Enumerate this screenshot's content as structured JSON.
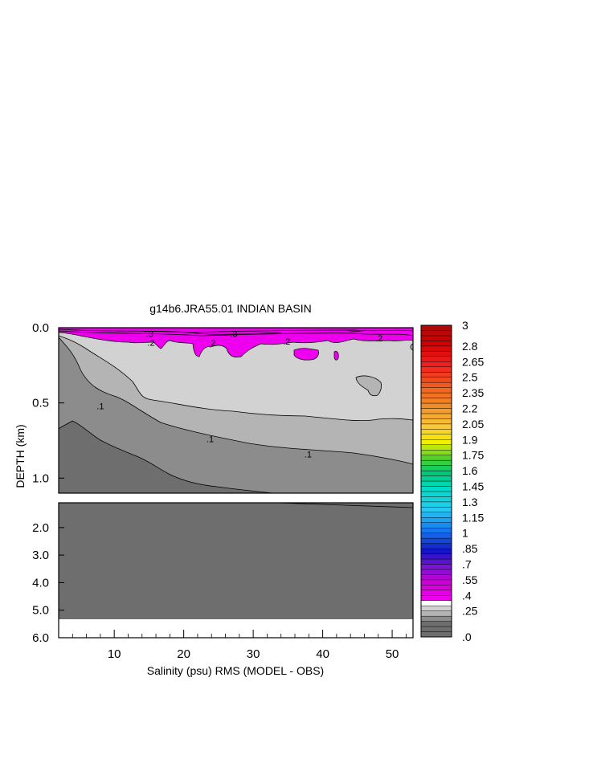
{
  "chart_data": {
    "type": "contour",
    "title": "g14b6.JRA55.01 INDIAN BASIN",
    "xlabel": "Salinity (psu) RMS (MODEL - OBS)",
    "ylabel": "DEPTH (km)",
    "xlim": [
      2,
      53
    ],
    "x_ticks": [
      10,
      20,
      30,
      40,
      50
    ],
    "x_tick_labels": [
      "10",
      "20",
      "30",
      "40",
      "50"
    ],
    "upper_panel": {
      "ylim": [
        0.0,
        1.1
      ],
      "y_ticks": [
        0.0,
        0.5,
        1.0
      ],
      "y_tick_labels": [
        "0.0",
        "0.5",
        "1.0"
      ]
    },
    "lower_panel": {
      "ylim": [
        1.1,
        6.0
      ],
      "y_ticks": [
        2.0,
        3.0,
        4.0,
        5.0,
        6.0
      ],
      "y_tick_labels": [
        "2.0",
        "3.0",
        "4.0",
        "5.0",
        "6.0"
      ]
    },
    "contour_labels": [
      {
        "text": ".3",
        "x": 15.1,
        "depth": 0.04
      },
      {
        "text": ".3",
        "x": 27.2,
        "depth": 0.04
      },
      {
        "text": ".2",
        "x": 15.3,
        "depth": 0.1
      },
      {
        "text": ".2",
        "x": 24.1,
        "depth": 0.1
      },
      {
        "text": ".2",
        "x": 34.8,
        "depth": 0.09
      },
      {
        "text": ".2",
        "x": 48.1,
        "depth": 0.07
      },
      {
        "text": ".1",
        "x": 8.0,
        "depth": 0.52
      },
      {
        "text": ".1",
        "x": 23.8,
        "depth": 0.74
      },
      {
        "text": ".1",
        "x": 37.9,
        "depth": 0.84
      }
    ],
    "colorbar": {
      "labels": [
        ".0",
        ".25",
        ".4",
        ".55",
        ".7",
        ".85",
        "1",
        "1.15",
        "1.3",
        "1.45",
        "1.6",
        "1.75",
        "1.9",
        "2.05",
        "2.2",
        "2.35",
        "2.5",
        "2.65",
        "2.8",
        "3"
      ],
      "min": 0,
      "max": 3,
      "interval": 0.05
    }
  }
}
